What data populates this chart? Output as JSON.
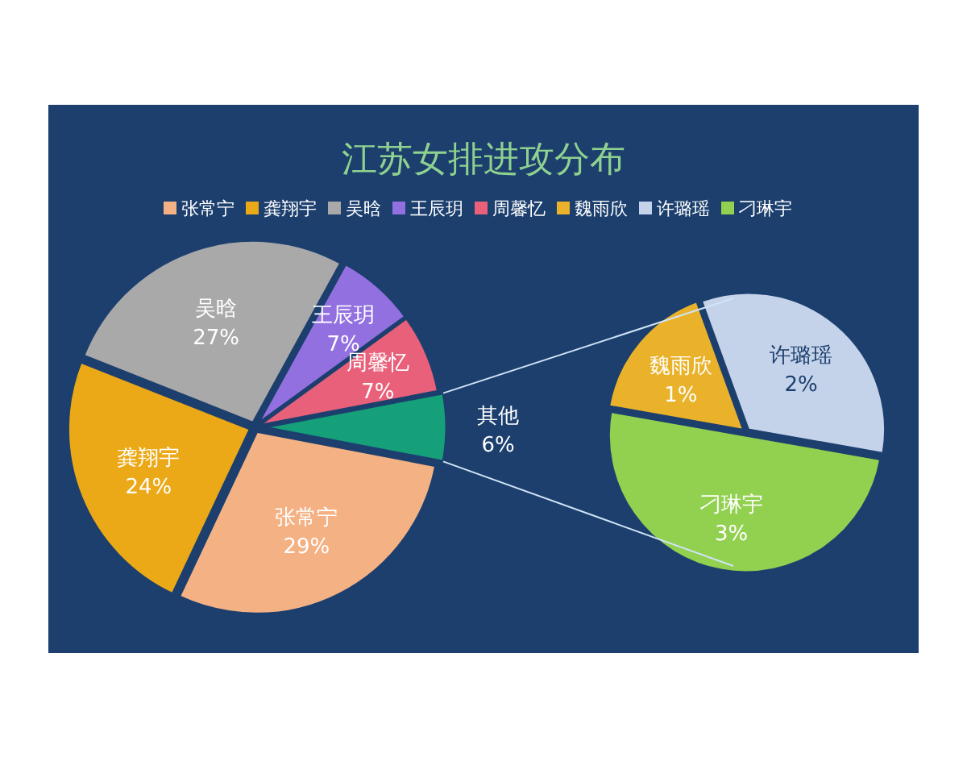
{
  "chart_data": [
    {
      "type": "pie",
      "title": "江苏女排进攻分布",
      "legend": "top",
      "categories": [
        "张常宁",
        "龚翔宇",
        "吴晗",
        "王辰玥",
        "周馨忆",
        "其他"
      ],
      "values": [
        29,
        24,
        27,
        7,
        7,
        6
      ],
      "colors": [
        "#f4b183",
        "#eba817",
        "#a9a9a9",
        "#9370e0",
        "#e8607a",
        "#16a07a"
      ],
      "value_labels": [
        "29%",
        "24%",
        "27%",
        "7%",
        "7%",
        "6%"
      ]
    },
    {
      "type": "pie",
      "legend": "top",
      "categories": [
        "魏雨欣",
        "许璐瑶",
        "刁琳宇"
      ],
      "values": [
        1,
        2,
        3
      ],
      "colors": [
        "#e9b22a",
        "#c5d3ea",
        "#92d050"
      ],
      "value_labels": [
        "1%",
        "2%",
        "3%"
      ]
    }
  ]
}
